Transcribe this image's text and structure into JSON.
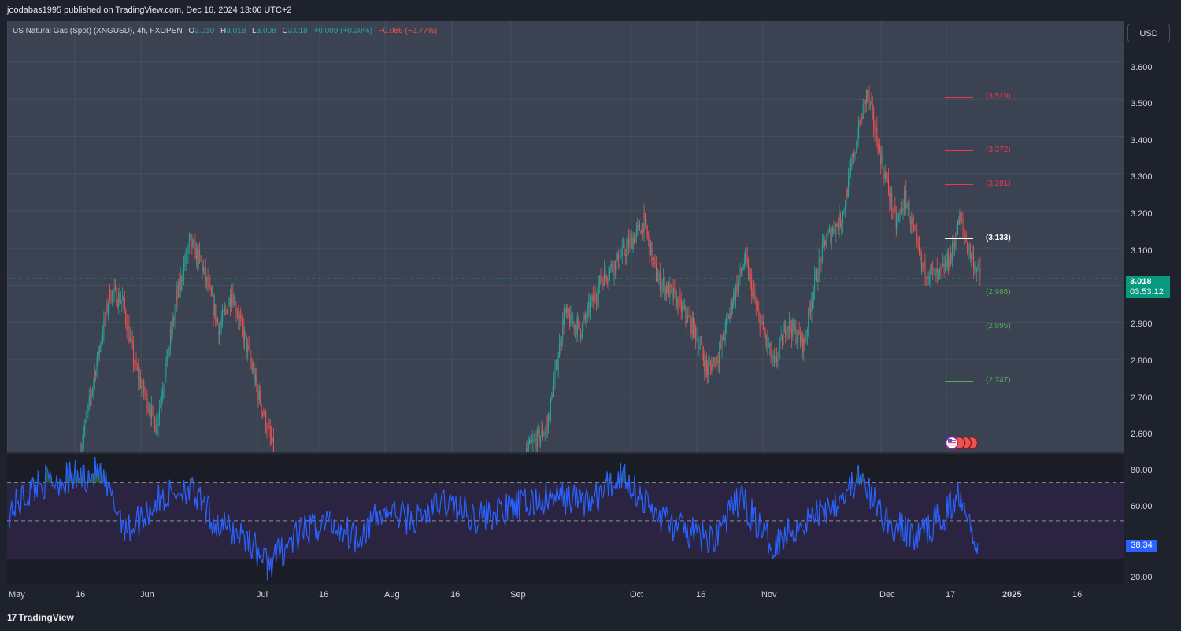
{
  "publish_line": "joodabas1995 published on TradingView.com, Dec 16, 2024 13:06 UTC+2",
  "legend": {
    "symbol": "US Natural Gas (Spot) (XNGUSD), 4h, FXOPEN",
    "o_label": "O",
    "o_value": "3.010",
    "h_label": "H",
    "h_value": "3.018",
    "l_label": "L",
    "l_value": "3.008",
    "c_label": "C",
    "c_value": "3.018",
    "change": "+0.009 (+0.30%)",
    "day_change": "−0.086 (−2.77%)"
  },
  "currency_button": "USD",
  "last_price": {
    "value": "3.018",
    "countdown": "03:53:12"
  },
  "footer": {
    "logo": "17",
    "brand": "TradingView"
  },
  "colors": {
    "up": "#26a69a",
    "down": "#ef5350",
    "level_red": "#f23645",
    "level_green": "#4caf50",
    "level_white": "#ffffff",
    "rsi_line": "#2962ff",
    "panel_bg": "#3b4252"
  },
  "chart_data": [
    {
      "type": "candlestick",
      "title": "US Natural Gas (Spot) (XNGUSD), 4h, FXOPEN",
      "y_ticks": [
        "3.600",
        "3.500",
        "3.400",
        "3.300",
        "3.200",
        "3.100",
        "3.000",
        "2.900",
        "2.800",
        "2.700",
        "2.600"
      ],
      "ylim": [
        2.55,
        3.71
      ],
      "x_ticks": [
        "May",
        "16",
        "Jun",
        "Jul",
        "16",
        "Aug",
        "16",
        "Sep",
        "Oct",
        "16",
        "Nov",
        "Dec",
        "17",
        "2025",
        "16"
      ],
      "path_anchors": [
        {
          "date": "May 16",
          "close": 2.55
        },
        {
          "date": "May 20",
          "close": 2.8
        },
        {
          "date": "May 23",
          "close": 2.98
        },
        {
          "date": "May 26",
          "close": 2.96
        },
        {
          "date": "May 29",
          "close": 2.78
        },
        {
          "date": "Jun 3",
          "close": 2.62
        },
        {
          "date": "Jun 8",
          "close": 2.97
        },
        {
          "date": "Jun 11",
          "close": 3.12
        },
        {
          "date": "Jun 14",
          "close": 3.05
        },
        {
          "date": "Jun 18",
          "close": 2.88
        },
        {
          "date": "Jun 21",
          "close": 2.98
        },
        {
          "date": "Jun 24",
          "close": 2.86
        },
        {
          "date": "Jun 27",
          "close": 2.72
        },
        {
          "date": "Jul 1",
          "close": 2.55
        },
        {
          "date": "Aug 30",
          "close": 2.55
        },
        {
          "date": "Sep 4",
          "close": 2.62
        },
        {
          "date": "Sep 8",
          "close": 2.92
        },
        {
          "date": "Sep 12",
          "close": 2.88
        },
        {
          "date": "Sep 17",
          "close": 3.02
        },
        {
          "date": "Sep 21",
          "close": 3.07
        },
        {
          "date": "Sep 27",
          "close": 3.17
        },
        {
          "date": "Sep 30",
          "close": 3.02
        },
        {
          "date": "Oct 4",
          "close": 2.97
        },
        {
          "date": "Oct 9",
          "close": 2.88
        },
        {
          "date": "Oct 12",
          "close": 2.77
        },
        {
          "date": "Oct 15",
          "close": 2.82
        },
        {
          "date": "Oct 18",
          "close": 2.96
        },
        {
          "date": "Oct 21",
          "close": 3.07
        },
        {
          "date": "Oct 24",
          "close": 2.92
        },
        {
          "date": "Oct 28",
          "close": 2.78
        },
        {
          "date": "Oct 31",
          "close": 2.9
        },
        {
          "date": "Nov 4",
          "close": 2.84
        },
        {
          "date": "Nov 6",
          "close": 2.98
        },
        {
          "date": "Nov 9",
          "close": 3.12
        },
        {
          "date": "Nov 13",
          "close": 3.18
        },
        {
          "date": "Nov 17",
          "close": 3.42
        },
        {
          "date": "Nov 19",
          "close": 3.52
        },
        {
          "date": "Nov 22",
          "close": 3.36
        },
        {
          "date": "Nov 26",
          "close": 3.16
        },
        {
          "date": "Nov 28",
          "close": 3.24
        },
        {
          "date": "Dec 2",
          "close": 3.05
        },
        {
          "date": "Dec 6",
          "close": 3.02
        },
        {
          "date": "Dec 9",
          "close": 3.08
        },
        {
          "date": "Dec 11",
          "close": 3.18
        },
        {
          "date": "Dec 13",
          "close": 3.1
        },
        {
          "date": "Dec 16",
          "close": 3.018
        }
      ],
      "levels": [
        {
          "label": "(3.519)",
          "value": 3.519,
          "color": "red"
        },
        {
          "label": "(3.372)",
          "value": 3.372,
          "color": "red"
        },
        {
          "label": "(3.281)",
          "value": 3.281,
          "color": "red"
        },
        {
          "label": "(3.133)",
          "value": 3.133,
          "color": "white"
        },
        {
          "label": "(2.986)",
          "value": 2.986,
          "color": "green"
        },
        {
          "label": "(2.895)",
          "value": 2.895,
          "color": "green"
        },
        {
          "label": "(2.747)",
          "value": 2.747,
          "color": "green"
        }
      ],
      "last_price": 3.018
    },
    {
      "type": "line",
      "title": "RSI",
      "y_ticks": [
        "80.00",
        "60.00",
        "20.00"
      ],
      "ylim": [
        17,
        85
      ],
      "bands": [
        70,
        50,
        30
      ],
      "anchors": [
        {
          "date": "May 1",
          "value": 55
        },
        {
          "date": "May 8",
          "value": 70
        },
        {
          "date": "May 15",
          "value": 72
        },
        {
          "date": "May 22",
          "value": 75
        },
        {
          "date": "May 29",
          "value": 45
        },
        {
          "date": "Jun 5",
          "value": 60
        },
        {
          "date": "Jun 12",
          "value": 68
        },
        {
          "date": "Jun 19",
          "value": 48
        },
        {
          "date": "Jun 26",
          "value": 42
        },
        {
          "date": "Jul 1",
          "value": 27
        },
        {
          "date": "Jul 8",
          "value": 42
        },
        {
          "date": "Jul 15",
          "value": 50
        },
        {
          "date": "Jul 22",
          "value": 42
        },
        {
          "date": "Jul 29",
          "value": 55
        },
        {
          "date": "Aug 5",
          "value": 50
        },
        {
          "date": "Aug 12",
          "value": 60
        },
        {
          "date": "Aug 19",
          "value": 52
        },
        {
          "date": "Aug 26",
          "value": 55
        },
        {
          "date": "Sep 2",
          "value": 60
        },
        {
          "date": "Sep 9",
          "value": 62
        },
        {
          "date": "Sep 16",
          "value": 60
        },
        {
          "date": "Sep 23",
          "value": 75
        },
        {
          "date": "Sep 30",
          "value": 55
        },
        {
          "date": "Oct 7",
          "value": 45
        },
        {
          "date": "Oct 14",
          "value": 40
        },
        {
          "date": "Oct 21",
          "value": 62
        },
        {
          "date": "Oct 28",
          "value": 38
        },
        {
          "date": "Nov 4",
          "value": 48
        },
        {
          "date": "Nov 11",
          "value": 58
        },
        {
          "date": "Nov 18",
          "value": 72
        },
        {
          "date": "Nov 25",
          "value": 48
        },
        {
          "date": "Dec 2",
          "value": 42
        },
        {
          "date": "Dec 9",
          "value": 55
        },
        {
          "date": "Dec 12",
          "value": 66
        },
        {
          "date": "Dec 16",
          "value": 38.34
        }
      ],
      "last_value": "38.34"
    }
  ]
}
